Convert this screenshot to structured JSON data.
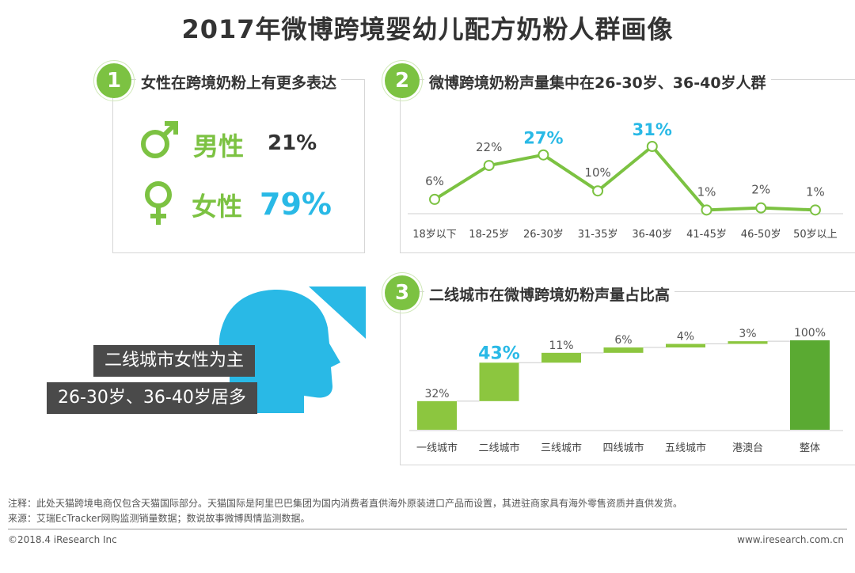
{
  "title": "2017年微博跨境婴幼儿配方奶粉人群画像",
  "panel1": {
    "number": "1",
    "heading": "女性在跨境奶粉上有更多表达",
    "male_label": "男性",
    "male_value": "21%",
    "female_label": "女性",
    "female_value": "79%",
    "male_color": "#7cc242",
    "female_color": "#29b9e6"
  },
  "panel2": {
    "number": "2",
    "heading": "微博跨境奶粉声量集中在26-30岁、36-40岁人群"
  },
  "panel3": {
    "number": "3",
    "heading": "二线城市在微博跨境奶粉声量占比高"
  },
  "persona": {
    "line1": "二线城市女性为主",
    "line2": "26-30岁、36-40岁居多"
  },
  "footer": {
    "note": "注释：此处天猫跨境电商仅包含天猫国际部分。天猫国际是阿里巴巴集团为国内消费者直供海外原装进口产品而设置，其进驻商家具有海外零售资质并直供发货。",
    "source": "来源：艾瑞EcTracker网购监测销量数据；数说故事微博舆情监测数据。",
    "copyright": "©2018.4 iResearch Inc",
    "site": "www.iresearch.com.cn"
  },
  "chart_data": [
    {
      "type": "line",
      "categories": [
        "18岁以下",
        "18-25岁",
        "26-30岁",
        "31-35岁",
        "36-40岁",
        "41-45岁",
        "46-50岁",
        "50岁以上"
      ],
      "values": [
        6,
        22,
        27,
        10,
        31,
        1,
        2,
        1
      ],
      "labels": [
        "6%",
        "22%",
        "27%",
        "10%",
        "31%",
        "1%",
        "2%",
        "1%"
      ],
      "highlight": [
        2,
        4
      ],
      "ylim": [
        0,
        31
      ],
      "grid": false,
      "line_color": "#7cc242",
      "highlight_color": "#29b9e6"
    },
    {
      "type": "bar",
      "subtype": "waterfall",
      "categories": [
        "一线城市",
        "二线城市",
        "三线城市",
        "四线城市",
        "五线城市",
        "港澳台",
        "整体"
      ],
      "values": [
        32,
        43,
        11,
        6,
        4,
        3,
        100
      ],
      "labels": [
        "32%",
        "43%",
        "11%",
        "6%",
        "4%",
        "3%",
        "100%"
      ],
      "total_index": 6,
      "highlight": [
        1
      ],
      "ylim": [
        0,
        100
      ],
      "grid": false,
      "bar_color": "#8cc63f",
      "total_color": "#5aaa32",
      "highlight_color": "#29b9e6"
    }
  ]
}
